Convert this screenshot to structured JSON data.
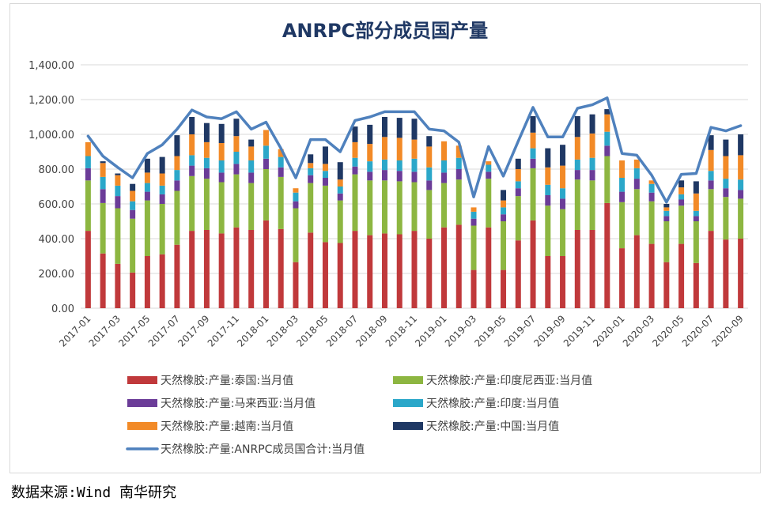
{
  "chart_data": {
    "type": "bar",
    "title": "ANRPC部分成员国产量",
    "ylim": [
      0,
      1400
    ],
    "yticks": [
      "0.00",
      "200.00",
      "400.00",
      "600.00",
      "800.00",
      "1,000.00",
      "1,200.00",
      "1,400.00"
    ],
    "ytick_values": [
      0,
      200,
      400,
      600,
      800,
      1000,
      1200,
      1400
    ],
    "categories": [
      "2017-01",
      "2017-02",
      "2017-03",
      "2017-04",
      "2017-05",
      "2017-06",
      "2017-07",
      "2017-08",
      "2017-09",
      "2017-10",
      "2017-11",
      "2017-12",
      "2018-01",
      "2018-02",
      "2018-03",
      "2018-04",
      "2018-05",
      "2018-06",
      "2018-07",
      "2018-08",
      "2018-09",
      "2018-10",
      "2018-11",
      "2018-12",
      "2019-01",
      "2019-02",
      "2019-03",
      "2019-04",
      "2019-05",
      "2019-06",
      "2019-07",
      "2019-08",
      "2019-09",
      "2019-10",
      "2019-11",
      "2019-12",
      "2020-01",
      "2020-02",
      "2020-03",
      "2020-04",
      "2020-05",
      "2020-06",
      "2020-07",
      "2020-08",
      "2020-09"
    ],
    "xtick_labels": [
      "2017-01",
      "2017-03",
      "2017-05",
      "2017-07",
      "2017-09",
      "2017-11",
      "2018-01",
      "2018-03",
      "2018-05",
      "2018-07",
      "2018-09",
      "2018-11",
      "2019-01",
      "2019-03",
      "2019-05",
      "2019-07",
      "2019-09",
      "2019-11",
      "2020-01",
      "2020-03",
      "2020-05",
      "2020-07",
      "2020-09"
    ],
    "series": [
      {
        "name": "天然橡胶:产量:泰国:当月值",
        "color": "#c0393b",
        "values": [
          445,
          315,
          255,
          205,
          300,
          310,
          365,
          445,
          450,
          430,
          465,
          450,
          505,
          455,
          265,
          435,
          380,
          375,
          445,
          420,
          430,
          425,
          445,
          400,
          465,
          480,
          220,
          465,
          220,
          390,
          505,
          300,
          300,
          450,
          450,
          605,
          345,
          420,
          370,
          265,
          370,
          260,
          445,
          395,
          400
        ]
      },
      {
        "name": "天然橡胶:产量:印度尼西亚:当月值",
        "color": "#8db641",
        "values": [
          290,
          290,
          320,
          310,
          320,
          290,
          310,
          315,
          295,
          295,
          305,
          270,
          295,
          300,
          310,
          285,
          325,
          245,
          325,
          315,
          305,
          305,
          280,
          280,
          255,
          260,
          255,
          280,
          280,
          255,
          300,
          290,
          270,
          290,
          285,
          270,
          265,
          265,
          245,
          235,
          220,
          240,
          240,
          245,
          230
        ]
      },
      {
        "name": "天然橡胶:产量:马来西亚:当月值",
        "color": "#6b3c98",
        "values": [
          70,
          80,
          70,
          50,
          50,
          55,
          60,
          60,
          60,
          55,
          60,
          60,
          60,
          55,
          40,
          45,
          45,
          40,
          45,
          50,
          60,
          60,
          60,
          55,
          60,
          60,
          40,
          40,
          40,
          45,
          55,
          60,
          60,
          55,
          60,
          60,
          60,
          60,
          50,
          30,
          35,
          30,
          50,
          50,
          50
        ]
      },
      {
        "name": "天然橡胶:产量:印度:当月值",
        "color": "#2ba7c9",
        "values": [
          70,
          70,
          60,
          50,
          50,
          50,
          60,
          60,
          60,
          70,
          70,
          70,
          75,
          60,
          50,
          40,
          40,
          40,
          50,
          60,
          60,
          60,
          75,
          75,
          70,
          65,
          40,
          40,
          40,
          40,
          60,
          60,
          60,
          60,
          70,
          80,
          80,
          60,
          50,
          30,
          30,
          30,
          55,
          55,
          60
        ]
      },
      {
        "name": "天然橡胶:产量:越南:当月值",
        "color": "#f28a27",
        "values": [
          80,
          80,
          60,
          60,
          60,
          70,
          80,
          120,
          90,
          100,
          90,
          80,
          90,
          45,
          25,
          30,
          40,
          40,
          90,
          100,
          130,
          130,
          110,
          120,
          110,
          70,
          25,
          20,
          40,
          70,
          90,
          100,
          130,
          130,
          140,
          100,
          100,
          50,
          20,
          20,
          40,
          100,
          120,
          130,
          140
        ]
      },
      {
        "name": "天然橡胶:产量:中国:当月值",
        "color": "#1f3864",
        "values": [
          0,
          10,
          10,
          40,
          80,
          95,
          120,
          100,
          110,
          110,
          100,
          40,
          0,
          0,
          0,
          50,
          100,
          100,
          90,
          110,
          115,
          115,
          120,
          60,
          0,
          0,
          0,
          0,
          60,
          60,
          95,
          110,
          120,
          120,
          110,
          30,
          0,
          0,
          0,
          20,
          40,
          70,
          85,
          95,
          120
        ]
      },
      {
        "name": "天然橡胶:产量:ANRPC成员国合计:当月值",
        "color": "#4f81bd",
        "kind": "line",
        "values": [
          990,
          875,
          810,
          750,
          890,
          940,
          1030,
          1140,
          1100,
          1090,
          1130,
          1030,
          1070,
          920,
          750,
          970,
          970,
          900,
          1080,
          1100,
          1130,
          1130,
          1130,
          1030,
          1020,
          955,
          640,
          930,
          760,
          960,
          1155,
          985,
          985,
          1150,
          1170,
          1210,
          890,
          880,
          765,
          610,
          770,
          775,
          1040,
          1020,
          1050
        ]
      }
    ],
    "legend_position": "bottom"
  },
  "source_text": "数据来源:Wind 南华研究"
}
